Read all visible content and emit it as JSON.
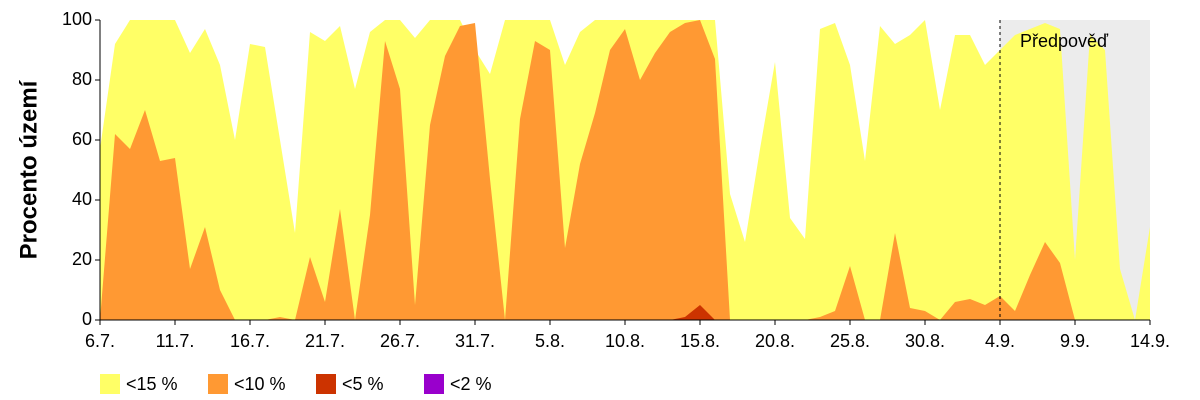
{
  "chart_data": {
    "type": "area",
    "ylabel": "Procento území",
    "categories": [
      "6.7.",
      null,
      null,
      null,
      null,
      "11.7.",
      null,
      null,
      null,
      null,
      "16.7.",
      null,
      null,
      null,
      null,
      "21.7.",
      null,
      null,
      null,
      null,
      "26.7.",
      null,
      null,
      null,
      null,
      "31.7.",
      null,
      null,
      null,
      null,
      "5.8.",
      null,
      null,
      null,
      null,
      "10.8.",
      null,
      null,
      null,
      null,
      "15.8.",
      null,
      null,
      null,
      null,
      "20.8.",
      null,
      null,
      null,
      null,
      "25.8.",
      null,
      null,
      null,
      null,
      "30.8.",
      null,
      null,
      null,
      null,
      "4.9.",
      null,
      null,
      null,
      null,
      "9.9.",
      null,
      null,
      null,
      null,
      "14.9."
    ],
    "ylim": [
      0,
      100
    ],
    "yticks": [
      0,
      20,
      40,
      60,
      80,
      100
    ],
    "forecast": {
      "label": "Předpověď",
      "start": "4.9.",
      "color": "#ececec"
    },
    "series": [
      {
        "name": "<15 %",
        "color": "#ffff66",
        "values": [
          57,
          92,
          100,
          100,
          100,
          100,
          89,
          97,
          85,
          60,
          92,
          91,
          60,
          29,
          96,
          93,
          98,
          77,
          96,
          100,
          100,
          94,
          100,
          100,
          100,
          90,
          82,
          100,
          100,
          100,
          100,
          85,
          96,
          100,
          100,
          100,
          100,
          100,
          100,
          100,
          100,
          100,
          42,
          26,
          57,
          86,
          34,
          27,
          97,
          99,
          85,
          53,
          98,
          92,
          95,
          100,
          70,
          95,
          95,
          85,
          90,
          95,
          97,
          99,
          97,
          20,
          95,
          90,
          17,
          0,
          31
        ]
      },
      {
        "name": "<10 %",
        "color": "#ff9933",
        "values": [
          0,
          62,
          57,
          70,
          53,
          54,
          17,
          31,
          10,
          0,
          0,
          0,
          1,
          0,
          21,
          6,
          37,
          0,
          35,
          93,
          77,
          5,
          65,
          88,
          98,
          99,
          47,
          0,
          67,
          93,
          90,
          24,
          52,
          69,
          90,
          97,
          80,
          89,
          96,
          99,
          100,
          87,
          0,
          0,
          0,
          0,
          0,
          0,
          1,
          3,
          18,
          0,
          0,
          29,
          4,
          3,
          0,
          6,
          7,
          5,
          8,
          3,
          15,
          26,
          19,
          0,
          0,
          0,
          0,
          0,
          0
        ]
      },
      {
        "name": "<5 %",
        "color": "#cc3300",
        "values": [
          0,
          0,
          0,
          0,
          0,
          0,
          0,
          0,
          0,
          0,
          0,
          0,
          0,
          0,
          0,
          0,
          0,
          0,
          0,
          0,
          0,
          0,
          0,
          0,
          0,
          0,
          0,
          0,
          0,
          0,
          0,
          0,
          0,
          0,
          0,
          0,
          0,
          0,
          0,
          1,
          5,
          0,
          0,
          0,
          0,
          0,
          0,
          0,
          0,
          0,
          0,
          0,
          0,
          0,
          0,
          0,
          0,
          0,
          0,
          0,
          0,
          0,
          0,
          0,
          0,
          0,
          0,
          0,
          0,
          0,
          0
        ]
      },
      {
        "name": "<2 %",
        "color": "#9900cc",
        "values": [
          0,
          0,
          0,
          0,
          0,
          0,
          0,
          0,
          0,
          0,
          0,
          0,
          0,
          0,
          0,
          0,
          0,
          0,
          0,
          0,
          0,
          0,
          0,
          0,
          0,
          0,
          0,
          0,
          0,
          0,
          0,
          0,
          0,
          0,
          0,
          0,
          0,
          0,
          0,
          0,
          0,
          0,
          0,
          0,
          0,
          0,
          0,
          0,
          0,
          0,
          0,
          0,
          0,
          0,
          0,
          0,
          0,
          0,
          0,
          0,
          0,
          0,
          0,
          0,
          0,
          0,
          0,
          0,
          0,
          0,
          0
        ]
      }
    ]
  }
}
